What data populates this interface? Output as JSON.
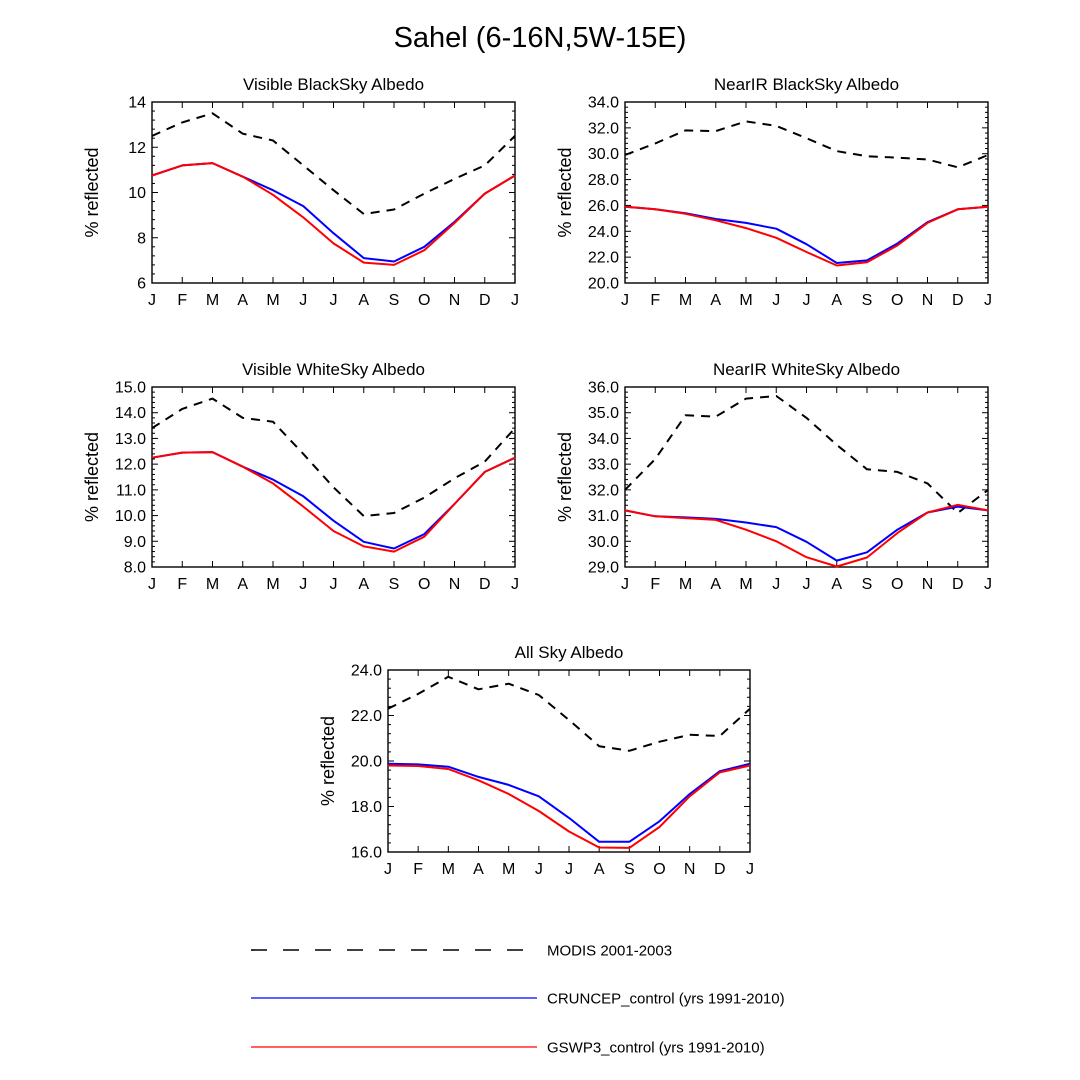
{
  "title": "Sahel (6-16N,5W-15E)",
  "legend": [
    {
      "label": "MODIS 2001-2003",
      "color": "#000000",
      "dash": "dashed"
    },
    {
      "label": "CRUNCEP_control (yrs 1991-2010)",
      "color": "#0000ff",
      "dash": "solid"
    },
    {
      "label": "GSWP3_control (yrs 1991-2010)",
      "color": "#ff0000",
      "dash": "solid"
    }
  ],
  "chart_data": [
    {
      "type": "line",
      "title": "Visible BlackSky Albedo",
      "xlabel": "",
      "ylabel": "% reflected",
      "categories": [
        "J",
        "F",
        "M",
        "A",
        "M",
        "J",
        "J",
        "A",
        "S",
        "O",
        "N",
        "D",
        "J"
      ],
      "ylim": [
        6,
        14
      ],
      "yticks": [
        "6",
        "8",
        "10",
        "12",
        "14"
      ],
      "series": [
        {
          "name": "MODIS 2001-2003",
          "values": [
            12.5,
            13.1,
            13.5,
            12.6,
            12.3,
            11.2,
            10.1,
            9.05,
            9.25,
            9.95,
            10.6,
            11.2,
            12.5
          ]
        },
        {
          "name": "CRUNCEP_control (yrs 1991-2010)",
          "values": [
            10.75,
            11.2,
            11.3,
            10.7,
            10.1,
            9.4,
            8.2,
            7.1,
            6.95,
            7.6,
            8.7,
            9.95,
            10.75
          ]
        },
        {
          "name": "GSWP3_control (yrs 1991-2010)",
          "values": [
            10.75,
            11.2,
            11.3,
            10.7,
            9.9,
            8.9,
            7.75,
            6.9,
            6.8,
            7.45,
            8.65,
            9.95,
            10.75
          ]
        }
      ]
    },
    {
      "type": "line",
      "title": "NearIR BlackSky Albedo",
      "xlabel": "",
      "ylabel": "% reflected",
      "categories": [
        "J",
        "F",
        "M",
        "A",
        "M",
        "J",
        "J",
        "A",
        "S",
        "O",
        "N",
        "D",
        "J"
      ],
      "ylim": [
        20,
        34
      ],
      "yticks": [
        "20.0",
        "22.0",
        "24.0",
        "26.0",
        "28.0",
        "30.0",
        "32.0",
        "34.0"
      ],
      "series": [
        {
          "name": "MODIS 2001-2003",
          "values": [
            29.9,
            30.8,
            31.8,
            31.75,
            32.5,
            32.15,
            31.2,
            30.2,
            29.8,
            29.7,
            29.55,
            28.95,
            29.9
          ]
        },
        {
          "name": "CRUNCEP_control (yrs 1991-2010)",
          "values": [
            25.9,
            25.7,
            25.4,
            24.95,
            24.65,
            24.2,
            23.0,
            21.55,
            21.75,
            23.05,
            24.7,
            25.7,
            25.9
          ]
        },
        {
          "name": "GSWP3_control (yrs 1991-2010)",
          "values": [
            25.9,
            25.7,
            25.35,
            24.85,
            24.25,
            23.5,
            22.4,
            21.35,
            21.6,
            22.9,
            24.65,
            25.7,
            25.9
          ]
        }
      ]
    },
    {
      "type": "line",
      "title": "Visible WhiteSky Albedo",
      "xlabel": "",
      "ylabel": "% reflected",
      "categories": [
        "J",
        "F",
        "M",
        "A",
        "M",
        "J",
        "J",
        "A",
        "S",
        "O",
        "N",
        "D",
        "J"
      ],
      "ylim": [
        8,
        15
      ],
      "yticks": [
        "8.0",
        "9.0",
        "10.0",
        "11.0",
        "12.0",
        "13.0",
        "14.0",
        "15.0"
      ],
      "series": [
        {
          "name": "MODIS 2001-2003",
          "values": [
            13.4,
            14.15,
            14.55,
            13.8,
            13.65,
            12.4,
            11.1,
            9.98,
            10.1,
            10.7,
            11.45,
            12.1,
            13.4
          ]
        },
        {
          "name": "CRUNCEP_control (yrs 1991-2010)",
          "values": [
            12.25,
            12.45,
            12.47,
            11.9,
            11.4,
            10.75,
            9.8,
            8.98,
            8.72,
            9.28,
            10.45,
            11.7,
            12.25
          ]
        },
        {
          "name": "GSWP3_control (yrs 1991-2010)",
          "values": [
            12.25,
            12.45,
            12.47,
            11.9,
            11.25,
            10.35,
            9.4,
            8.8,
            8.6,
            9.18,
            10.45,
            11.7,
            12.25
          ]
        }
      ]
    },
    {
      "type": "line",
      "title": "NearIR WhiteSky Albedo",
      "xlabel": "",
      "ylabel": "% reflected",
      "categories": [
        "J",
        "F",
        "M",
        "A",
        "M",
        "J",
        "J",
        "A",
        "S",
        "O",
        "N",
        "D",
        "J"
      ],
      "ylim": [
        29,
        36
      ],
      "yticks": [
        "29.0",
        "30.0",
        "31.0",
        "32.0",
        "33.0",
        "34.0",
        "35.0",
        "36.0"
      ],
      "series": [
        {
          "name": "MODIS 2001-2003",
          "values": [
            32.0,
            33.2,
            34.9,
            34.85,
            35.55,
            35.65,
            34.8,
            33.75,
            32.8,
            32.7,
            32.25,
            31.1,
            32.0
          ]
        },
        {
          "name": "CRUNCEP_control (yrs 1991-2010)",
          "values": [
            31.2,
            30.97,
            30.93,
            30.87,
            30.73,
            30.55,
            29.98,
            29.25,
            29.57,
            30.45,
            31.12,
            31.35,
            31.2
          ]
        },
        {
          "name": "GSWP3_control (yrs 1991-2010)",
          "values": [
            31.2,
            30.97,
            30.9,
            30.83,
            30.45,
            30.0,
            29.38,
            29.02,
            29.37,
            30.32,
            31.12,
            31.42,
            31.2
          ]
        }
      ]
    },
    {
      "type": "line",
      "title": "All Sky Albedo",
      "xlabel": "",
      "ylabel": "% reflected",
      "categories": [
        "J",
        "F",
        "M",
        "A",
        "M",
        "J",
        "J",
        "A",
        "S",
        "O",
        "N",
        "D",
        "J"
      ],
      "ylim": [
        16,
        24
      ],
      "yticks": [
        "16.0",
        "18.0",
        "20.0",
        "22.0",
        "24.0"
      ],
      "series": [
        {
          "name": "MODIS 2001-2003",
          "values": [
            22.3,
            22.95,
            23.7,
            23.15,
            23.4,
            22.9,
            21.8,
            20.65,
            20.45,
            20.85,
            21.15,
            21.1,
            22.3
          ]
        },
        {
          "name": "CRUNCEP_control (yrs 1991-2010)",
          "values": [
            19.88,
            19.85,
            19.75,
            19.3,
            18.95,
            18.45,
            17.5,
            16.45,
            16.45,
            17.35,
            18.55,
            19.55,
            19.88
          ]
        },
        {
          "name": "GSWP3_control (yrs 1991-2010)",
          "values": [
            19.8,
            19.78,
            19.65,
            19.15,
            18.55,
            17.8,
            16.9,
            16.2,
            16.18,
            17.1,
            18.45,
            19.5,
            19.8
          ]
        }
      ]
    }
  ]
}
